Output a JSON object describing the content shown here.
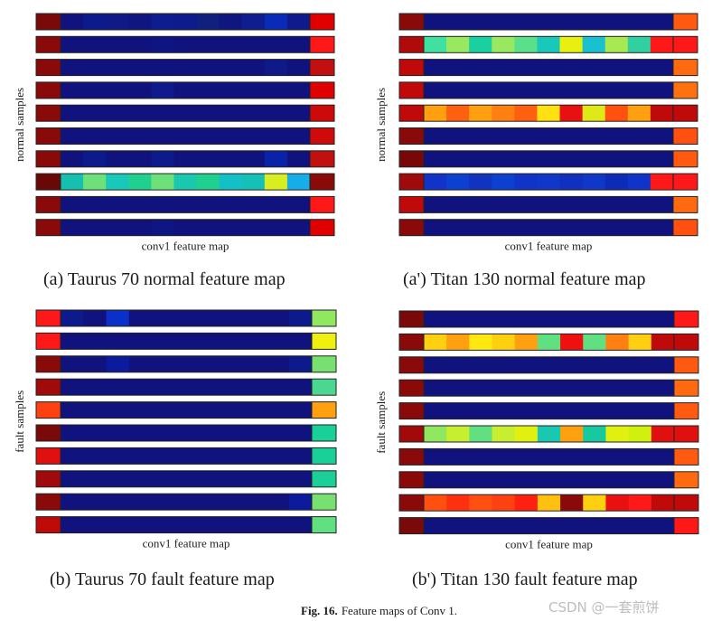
{
  "chart_data": [
    {
      "type": "heatmap",
      "id": "panel_a",
      "caption": "(a) Taurus 70 normal feature map",
      "ylabel": "normal samples",
      "xlabel": "conv1 feature map",
      "rows": [
        [
          "#7a0a0a",
          "#10127e",
          "#0c1a8c",
          "#0f1a86",
          "#10167f",
          "#0d1c8e",
          "#0e1b8a",
          "#11207f",
          "#10167f",
          "#0f1d8f",
          "#0a2ab8",
          "#0f1b8c",
          "#e00000"
        ],
        [
          "#8a0a0a",
          "#10127e",
          "#10127e",
          "#10127e",
          "#10127e",
          "#0e1583",
          "#10127e",
          "#10127e",
          "#10127e",
          "#10127e",
          "#10127e",
          "#10127e",
          "#ff1818"
        ],
        [
          "#8a0a0a",
          "#10127e",
          "#10127e",
          "#10127e",
          "#10127e",
          "#10127e",
          "#10127e",
          "#10127e",
          "#10127e",
          "#10127e",
          "#0f1a8a",
          "#10127e",
          "#c21010"
        ],
        [
          "#8a0a0a",
          "#10127e",
          "#10127e",
          "#10127e",
          "#10127e",
          "#0f1a8c",
          "#10127e",
          "#10127e",
          "#10127e",
          "#10127e",
          "#10127e",
          "#10127e",
          "#e00000"
        ],
        [
          "#8a0a0a",
          "#10127e",
          "#10127e",
          "#10127e",
          "#10127e",
          "#10127e",
          "#10127e",
          "#10127e",
          "#10127e",
          "#10127e",
          "#10127e",
          "#10127e",
          "#cc0a0a"
        ],
        [
          "#8a0a0a",
          "#10127e",
          "#10127e",
          "#10127e",
          "#10127e",
          "#10127e",
          "#10127e",
          "#10127e",
          "#10127e",
          "#10127e",
          "#10127e",
          "#10127e",
          "#d00a0a"
        ],
        [
          "#8a0a0a",
          "#10127e",
          "#0c1a8c",
          "#10127e",
          "#10127e",
          "#0c1a8c",
          "#10127e",
          "#10127e",
          "#10127e",
          "#10127e",
          "#0a22a8",
          "#10127e",
          "#c01010"
        ],
        [
          "#6a0808",
          "#16c0b0",
          "#6ee07a",
          "#18c8b8",
          "#20d090",
          "#6ee07a",
          "#1ac8b0",
          "#20d090",
          "#14c0c8",
          "#14c0b8",
          "#d8ee20",
          "#16aee8",
          "#8a0a0a"
        ],
        [
          "#8a0a0a",
          "#10127e",
          "#10127e",
          "#10127e",
          "#10127e",
          "#10127e",
          "#10127e",
          "#10127e",
          "#10127e",
          "#10127e",
          "#10127e",
          "#10127e",
          "#ff1818"
        ],
        [
          "#8a0a0a",
          "#10127e",
          "#10127e",
          "#10127e",
          "#10127e",
          "#0f1684",
          "#10127e",
          "#10127e",
          "#10127e",
          "#10127e",
          "#10127e",
          "#10127e",
          "#e00000"
        ]
      ]
    },
    {
      "type": "heatmap",
      "id": "panel_a2",
      "caption": "(a') Titan 130 normal feature map",
      "ylabel": "normal samples",
      "xlabel": "conv1 feature map",
      "rows": [
        [
          "#8a0a0a",
          "#10127e",
          "#10127e",
          "#10127e",
          "#10127e",
          "#10127e",
          "#10127e",
          "#10127e",
          "#10127e",
          "#10127e",
          "#10127e",
          "#10127e",
          "#ff5a10"
        ],
        [
          "#b00a0a",
          "#40e0a0",
          "#9ae860",
          "#18d0a0",
          "#9ae860",
          "#5ae08a",
          "#18c8b8",
          "#e8f010",
          "#18c0d0",
          "#a8e850",
          "#30d0a0",
          "#ff1818",
          "#ff1818"
        ],
        [
          "#c00a0a",
          "#10127e",
          "#10127e",
          "#10127e",
          "#10127e",
          "#10127e",
          "#10127e",
          "#10127e",
          "#10127e",
          "#10127e",
          "#10127e",
          "#10127e",
          "#ff6a10"
        ],
        [
          "#c00a0a",
          "#10127e",
          "#10127e",
          "#10127e",
          "#10127e",
          "#10127e",
          "#10127e",
          "#10127e",
          "#10127e",
          "#10127e",
          "#10127e",
          "#10127e",
          "#ff7010"
        ],
        [
          "#c00a0a",
          "#ffa010",
          "#ff6010",
          "#ffa010",
          "#ff8010",
          "#ff6010",
          "#ffe010",
          "#e81010",
          "#e0e818",
          "#ff5010",
          "#ffa010",
          "#c00a0a",
          "#c00a0a"
        ],
        [
          "#8a0a0a",
          "#10127e",
          "#10127e",
          "#10127e",
          "#10127e",
          "#10127e",
          "#10127e",
          "#10127e",
          "#10127e",
          "#10127e",
          "#10127e",
          "#10127e",
          "#ff5010"
        ],
        [
          "#780808",
          "#10127e",
          "#10127e",
          "#10127e",
          "#10127e",
          "#10127e",
          "#10127e",
          "#10127e",
          "#10127e",
          "#10127e",
          "#10127e",
          "#10127e",
          "#ff5a10"
        ],
        [
          "#a00a0a",
          "#1034c8",
          "#0c40d0",
          "#1034c0",
          "#0c40d0",
          "#1034c8",
          "#1038c8",
          "#1030c0",
          "#1038c8",
          "#0c2cb8",
          "#1034c8",
          "#ff1818",
          "#ff1818"
        ],
        [
          "#c00a0a",
          "#10127e",
          "#10127e",
          "#10127e",
          "#10127e",
          "#10127e",
          "#10127e",
          "#10127e",
          "#10127e",
          "#10127e",
          "#10127e",
          "#10127e",
          "#ff6a10"
        ],
        [
          "#8a0a0a",
          "#10127e",
          "#10127e",
          "#10127e",
          "#10127e",
          "#10127e",
          "#10127e",
          "#10127e",
          "#10127e",
          "#10127e",
          "#10127e",
          "#10127e",
          "#ff5010"
        ]
      ]
    },
    {
      "type": "heatmap",
      "id": "panel_b",
      "caption": "(b) Taurus 70 fault feature map",
      "ylabel": "fault samples",
      "xlabel": "conv1 feature map",
      "rows": [
        [
          "#ff1818",
          "#0c1a8c",
          "#10127e",
          "#0a30c8",
          "#10127e",
          "#10127e",
          "#10127e",
          "#10127e",
          "#10127e",
          "#10127e",
          "#10127e",
          "#0c1a8c",
          "#90e860"
        ],
        [
          "#ff1818",
          "#10127e",
          "#10127e",
          "#10127e",
          "#10127e",
          "#10127e",
          "#10127e",
          "#10127e",
          "#10127e",
          "#10127e",
          "#10127e",
          "#10127e",
          "#f0f010"
        ],
        [
          "#8a0a0a",
          "#10127e",
          "#10127e",
          "#0c1a9c",
          "#10127e",
          "#10127e",
          "#10127e",
          "#10127e",
          "#10127e",
          "#10127e",
          "#10127e",
          "#0c1a8c",
          "#78e070"
        ],
        [
          "#a00a0a",
          "#10127e",
          "#10127e",
          "#10127e",
          "#10127e",
          "#10127e",
          "#10127e",
          "#10127e",
          "#10127e",
          "#10127e",
          "#10127e",
          "#10127e",
          "#4ad890"
        ],
        [
          "#ff4010",
          "#10127e",
          "#10127e",
          "#10127e",
          "#10127e",
          "#10127e",
          "#10127e",
          "#10127e",
          "#10127e",
          "#10127e",
          "#10127e",
          "#10127e",
          "#ffa010"
        ],
        [
          "#7a0a0a",
          "#10127e",
          "#10127e",
          "#10127e",
          "#10127e",
          "#10127e",
          "#10127e",
          "#10127e",
          "#10127e",
          "#10127e",
          "#10127e",
          "#10127e",
          "#18d098"
        ],
        [
          "#e01010",
          "#10127e",
          "#10127e",
          "#10127e",
          "#10127e",
          "#10127e",
          "#10127e",
          "#10127e",
          "#10127e",
          "#10127e",
          "#10127e",
          "#10127e",
          "#18d098"
        ],
        [
          "#a00a0a",
          "#10127e",
          "#10127e",
          "#10127e",
          "#10127e",
          "#10127e",
          "#10127e",
          "#10127e",
          "#10127e",
          "#10127e",
          "#10127e",
          "#10127e",
          "#1ad098"
        ],
        [
          "#8a0a0a",
          "#10127e",
          "#10127e",
          "#10127e",
          "#10127e",
          "#10127e",
          "#10127e",
          "#10127e",
          "#10127e",
          "#10127e",
          "#10127e",
          "#0c1a9c",
          "#78e070"
        ],
        [
          "#c00a0a",
          "#10127e",
          "#10127e",
          "#10127e",
          "#10127e",
          "#10127e",
          "#10127e",
          "#10127e",
          "#10127e",
          "#10127e",
          "#10127e",
          "#10127e",
          "#60e080"
        ]
      ]
    },
    {
      "type": "heatmap",
      "id": "panel_b2",
      "caption": "(b') Titan 130 fault feature map",
      "ylabel": "fault samples",
      "xlabel": "conv1 feature map",
      "rows": [
        [
          "#7a0a0a",
          "#10127e",
          "#10127e",
          "#10127e",
          "#10127e",
          "#10127e",
          "#10127e",
          "#10127e",
          "#10127e",
          "#10127e",
          "#10127e",
          "#10127e",
          "#ff1818"
        ],
        [
          "#8a0a0a",
          "#ffd010",
          "#ffa010",
          "#ffe810",
          "#ffd010",
          "#ffa010",
          "#60e080",
          "#f01010",
          "#60e080",
          "#ff8010",
          "#ffd010",
          "#c00a0a",
          "#c00a0a"
        ],
        [
          "#8a0a0a",
          "#10127e",
          "#10127e",
          "#10127e",
          "#10127e",
          "#10127e",
          "#10127e",
          "#10127e",
          "#10127e",
          "#10127e",
          "#10127e",
          "#10127e",
          "#ff5a10"
        ],
        [
          "#8a0a0a",
          "#10127e",
          "#10127e",
          "#10127e",
          "#10127e",
          "#10127e",
          "#10127e",
          "#10127e",
          "#10127e",
          "#10127e",
          "#10127e",
          "#10127e",
          "#ff6a10"
        ],
        [
          "#8a0a0a",
          "#10127e",
          "#10127e",
          "#10127e",
          "#10127e",
          "#10127e",
          "#10127e",
          "#10127e",
          "#10127e",
          "#10127e",
          "#10127e",
          "#10127e",
          "#ff5a10"
        ],
        [
          "#a00a0a",
          "#90e860",
          "#c8ee30",
          "#60e080",
          "#c8ee30",
          "#e0f010",
          "#18c8b0",
          "#ffa010",
          "#18c8a0",
          "#e0f010",
          "#d0f010",
          "#e01010",
          "#e01010"
        ],
        [
          "#8a0a0a",
          "#10127e",
          "#10127e",
          "#10127e",
          "#10127e",
          "#10127e",
          "#10127e",
          "#10127e",
          "#10127e",
          "#10127e",
          "#10127e",
          "#10127e",
          "#ff5a10"
        ],
        [
          "#8a0a0a",
          "#10127e",
          "#10127e",
          "#10127e",
          "#10127e",
          "#10127e",
          "#10127e",
          "#10127e",
          "#10127e",
          "#10127e",
          "#10127e",
          "#10127e",
          "#ff6a10"
        ],
        [
          "#8a0a0a",
          "#ff5010",
          "#ff3010",
          "#ff5010",
          "#ff4010",
          "#ff2010",
          "#ffc010",
          "#8a0a0a",
          "#ffd010",
          "#e81010",
          "#ff1818",
          "#c00a0a",
          "#c00a0a"
        ],
        [
          "#7a0a0a",
          "#10127e",
          "#10127e",
          "#10127e",
          "#10127e",
          "#10127e",
          "#10127e",
          "#10127e",
          "#10127e",
          "#10127e",
          "#10127e",
          "#10127e",
          "#ff1818"
        ]
      ]
    }
  ],
  "figure_caption": {
    "label": "Fig. 16.",
    "text": "Feature maps of Conv 1."
  },
  "watermark": "CSDN @一套煎饼"
}
